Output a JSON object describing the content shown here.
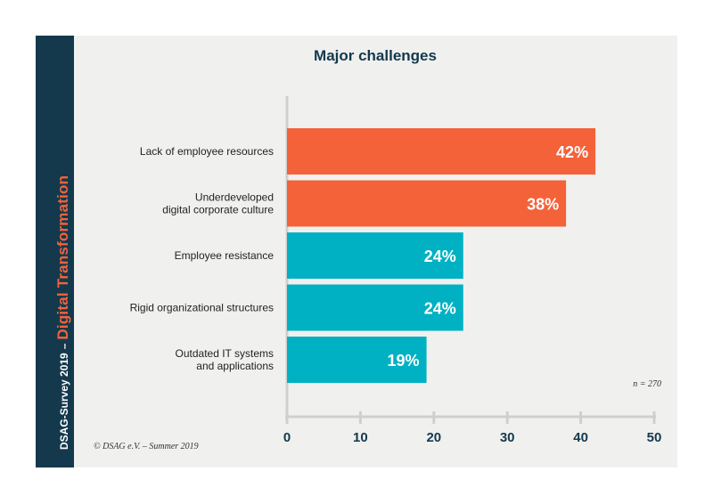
{
  "sidebar": {
    "survey_label": "DSAG-Survey 2019",
    "separator": "–",
    "topic_label": "Digital Transformation"
  },
  "footer": {
    "copyright": "© DSAG e.V. –  Summer 2019"
  },
  "colors": {
    "sidebar": "#14394d",
    "panel": "#f0f0ee",
    "bar_orange": "#f4623a",
    "bar_teal": "#00b1c3",
    "title": "#14394d",
    "axis": "#cfcfcf"
  },
  "chart_data": {
    "type": "bar",
    "orientation": "horizontal",
    "title": "Major challenges",
    "xlabel": "",
    "ylabel": "",
    "xlim": [
      0,
      50
    ],
    "ticks": [
      0,
      10,
      20,
      30,
      40,
      50
    ],
    "categories": [
      [
        "Lack of employee resources"
      ],
      [
        "Underdeveloped",
        "digital corporate culture"
      ],
      [
        "Employee resistance"
      ],
      [
        "Rigid organizational structures"
      ],
      [
        "Outdated IT systems",
        "and applications"
      ]
    ],
    "values": [
      42,
      38,
      24,
      24,
      19
    ],
    "data_labels": [
      "42%",
      "38%",
      "24%",
      "24%",
      "19%"
    ],
    "bar_colors": [
      "#f4623a",
      "#f4623a",
      "#00b1c3",
      "#00b1c3",
      "#00b1c3"
    ],
    "annotation": "n = 270"
  }
}
